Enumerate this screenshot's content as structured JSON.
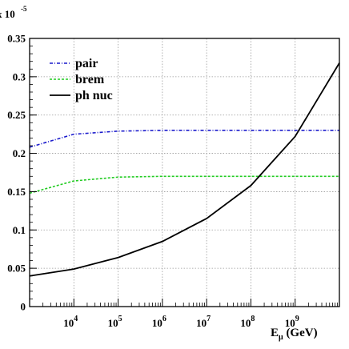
{
  "chart_data": {
    "type": "line",
    "title": "x 10",
    "title_exponent": "-5",
    "xlabel_main": "E",
    "xlabel_sub": "μ",
    "xlabel_units": " (GeV)",
    "ylabel": "",
    "x_scale": "log",
    "x_range_exponent": [
      3,
      10
    ],
    "ylim": [
      0,
      0.35
    ],
    "grid": true,
    "legend_position": "top-left",
    "y_ticks": [
      0,
      0.05,
      0.1,
      0.15,
      0.2,
      0.25,
      0.3,
      0.35
    ],
    "y_tick_labels": [
      "0",
      "0.05",
      "0.1",
      "0.15",
      "0.2",
      "0.25",
      "0.3",
      "0.35"
    ],
    "x_ticks_exponent": [
      4,
      5,
      6,
      7,
      8,
      9
    ],
    "x_tick_base": "10",
    "x_tick_labels": [
      "4",
      "5",
      "6",
      "7",
      "8",
      "9"
    ],
    "series": [
      {
        "name": "pair",
        "color": "#1a1acc",
        "style": "dash-dot",
        "x_exponent": [
          3,
          4,
          5,
          6,
          7,
          8,
          9,
          10
        ],
        "values": [
          0.208,
          0.225,
          0.229,
          0.23,
          0.23,
          0.23,
          0.23,
          0.23
        ]
      },
      {
        "name": "brem",
        "color": "#22cc22",
        "style": "dashed",
        "x_exponent": [
          3,
          4,
          5,
          6,
          7,
          8,
          9,
          10
        ],
        "values": [
          0.148,
          0.164,
          0.169,
          0.17,
          0.17,
          0.17,
          0.17,
          0.17
        ]
      },
      {
        "name": "ph nuc",
        "color": "#000000",
        "style": "solid",
        "x_exponent": [
          3,
          4,
          5,
          6,
          7,
          8,
          9,
          10
        ],
        "values": [
          0.04,
          0.049,
          0.064,
          0.085,
          0.115,
          0.158,
          0.222,
          0.318
        ]
      }
    ]
  }
}
